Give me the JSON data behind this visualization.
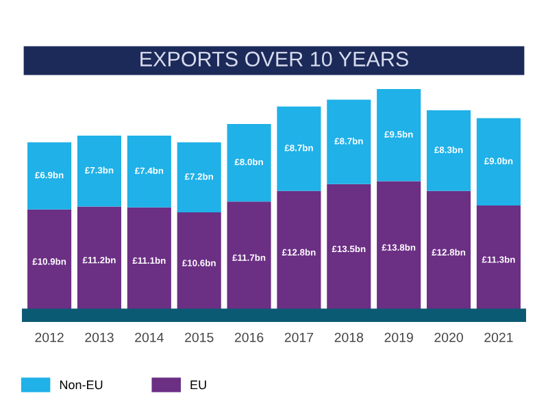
{
  "chart_data": {
    "type": "bar",
    "title": "EXPORTS OVER 10 YEARS",
    "stacked": true,
    "categories": [
      "2012",
      "2013",
      "2014",
      "2015",
      "2016",
      "2017",
      "2018",
      "2019",
      "2020",
      "2021"
    ],
    "series": [
      {
        "name": "EU",
        "color": "#6b2f84",
        "values": [
          10.9,
          11.2,
          11.1,
          10.6,
          11.7,
          12.8,
          13.5,
          13.8,
          12.8,
          11.3
        ],
        "value_labels": [
          "£10.9bn",
          "£11.2bn",
          "£11.1bn",
          "£10.6bn",
          "£11.7bn",
          "£12.8bn",
          "£13.5bn",
          "£13.8bn",
          "£12.8bn",
          "£11.3bn"
        ]
      },
      {
        "name": "Non-EU",
        "color": "#1fb1e8",
        "values": [
          6.9,
          7.3,
          7.4,
          7.2,
          8.0,
          8.7,
          8.7,
          9.5,
          8.3,
          9.0
        ],
        "value_labels": [
          "£6.9bn",
          "£7.3bn",
          "£7.4bn",
          "£7.2bn",
          "£8.0bn",
          "£8.7bn",
          "£8.7bn",
          "£9.5bn",
          "£8.3bn",
          "£9.0bn"
        ]
      }
    ],
    "legend": "bottom left",
    "grid": false
  }
}
